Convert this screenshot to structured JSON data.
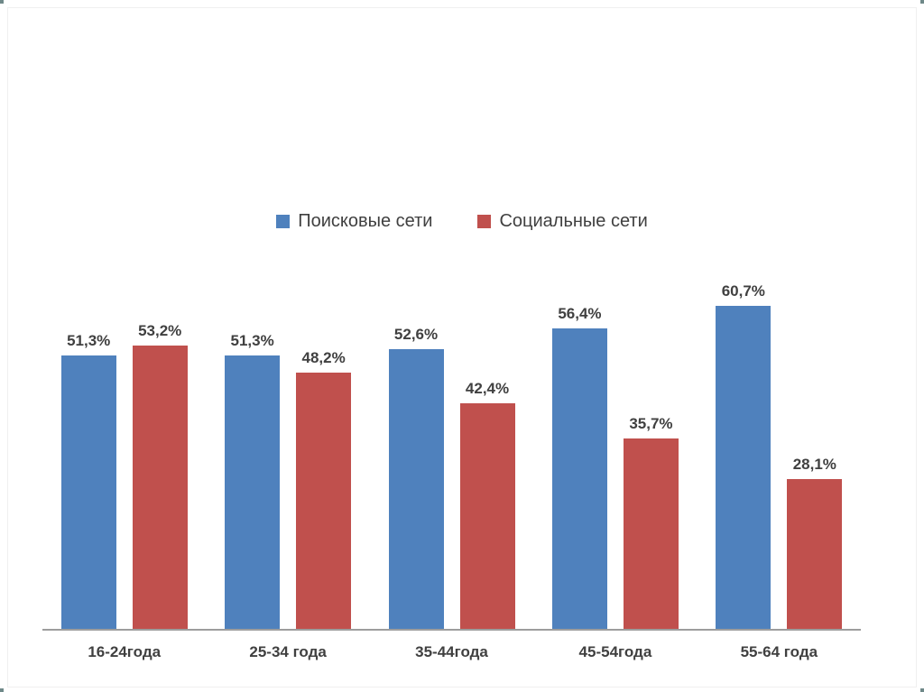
{
  "page": {
    "background": "#ffffff",
    "frame_color": "#f0efef",
    "corner_mark_color": "#3f6161"
  },
  "chart_data": {
    "type": "bar",
    "title": "",
    "xlabel": "",
    "ylabel": "",
    "categories": [
      "16-24года",
      "25-34 года",
      "35-44года",
      "45-54года",
      "55-64 года"
    ],
    "series": [
      {
        "name": "Поисковые сети",
        "color": "#4F81BD",
        "values": [
          51.3,
          51.3,
          52.6,
          56.4,
          60.7
        ]
      },
      {
        "name": "Социальные сети",
        "color": "#C0504D",
        "values": [
          53.2,
          48.2,
          42.4,
          35.7,
          28.1
        ]
      }
    ],
    "ylim": [
      0,
      70
    ],
    "grid": false,
    "y_axis_visible": false,
    "legend_position": "top-center",
    "value_suffix": "%",
    "decimal_separator": ",",
    "label_color": "#404040",
    "axis_color": "#9d9d9d"
  }
}
